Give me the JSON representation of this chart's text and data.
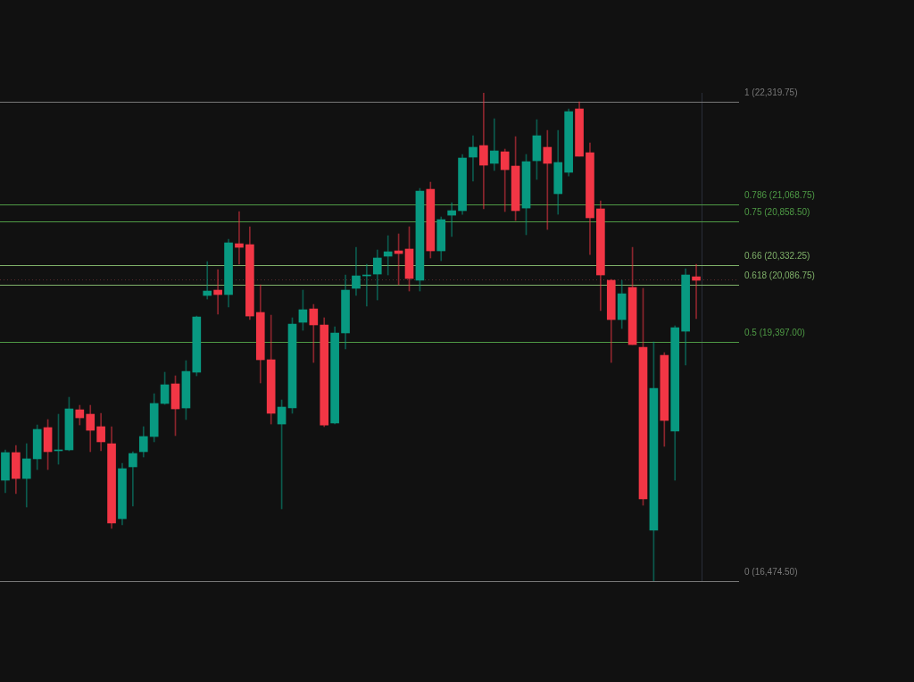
{
  "chart_data": {
    "type": "candlestick",
    "categories": [
      null,
      null,
      null,
      null,
      null,
      null,
      null,
      null,
      null,
      null,
      null,
      null,
      null,
      null,
      null,
      null,
      null,
      null,
      null,
      null,
      null,
      null,
      null,
      null,
      null,
      null,
      null,
      null,
      null,
      null,
      null,
      null,
      null,
      null,
      null,
      null,
      null,
      null,
      null,
      null,
      null,
      null,
      null,
      null,
      null,
      null,
      null,
      null,
      null,
      null,
      null,
      null,
      null,
      null,
      null,
      null,
      null,
      null,
      null,
      null,
      null,
      null,
      null,
      null,
      null,
      null
    ],
    "ohlc": [
      [
        17705,
        18075,
        17552,
        18042
      ],
      [
        18042,
        18129,
        17541,
        17726
      ],
      [
        17726,
        18151,
        17378,
        17966
      ],
      [
        17966,
        18379,
        17835,
        18325
      ],
      [
        18347,
        18445,
        17835,
        18053
      ],
      [
        18064,
        18510,
        17900,
        18064
      ],
      [
        18075,
        18717,
        18064,
        18575
      ],
      [
        18564,
        18619,
        18379,
        18466
      ],
      [
        18510,
        18619,
        18053,
        18314
      ],
      [
        18358,
        18521,
        18064,
        18173
      ],
      [
        18151,
        18358,
        17117,
        17182
      ],
      [
        17236,
        17911,
        17160,
        17846
      ],
      [
        17868,
        18053,
        17389,
        18031
      ],
      [
        18053,
        18358,
        17988,
        18238
      ],
      [
        18238,
        18760,
        18173,
        18641
      ],
      [
        18641,
        19022,
        18630,
        18869
      ],
      [
        18880,
        18978,
        18249,
        18575
      ],
      [
        18586,
        19163,
        18445,
        19032
      ],
      [
        19022,
        19707,
        18978,
        19696
      ],
      [
        19958,
        20371,
        19914,
        20012
      ],
      [
        20023,
        20273,
        19729,
        19969
      ],
      [
        19969,
        20643,
        19816,
        20600
      ],
      [
        20589,
        20981,
        20339,
        20545
      ],
      [
        20578,
        20796,
        19664,
        19707
      ],
      [
        19751,
        20088,
        18891,
        19174
      ],
      [
        19174,
        19718,
        18390,
        18521
      ],
      [
        18390,
        18684,
        17356,
        18597
      ],
      [
        18586,
        19686,
        18521,
        19609
      ],
      [
        19631,
        20023,
        19533,
        19784
      ],
      [
        19794,
        19849,
        19141,
        19599
      ],
      [
        19599,
        19686,
        18358,
        18379
      ],
      [
        18401,
        19577,
        18390,
        19501
      ],
      [
        19501,
        20208,
        19305,
        20023
      ],
      [
        20045,
        20545,
        19958,
        20197
      ],
      [
        20197,
        20339,
        19827,
        20208
      ],
      [
        20219,
        20513,
        19903,
        20415
      ],
      [
        20437,
        20687,
        20208,
        20491
      ],
      [
        20502,
        20709,
        20088,
        20469
      ],
      [
        20524,
        20796,
        20012,
        20165
      ],
      [
        20143,
        21264,
        20012,
        21231
      ],
      [
        21253,
        21340,
        20415,
        20502
      ],
      [
        20502,
        20916,
        20382,
        20883
      ],
      [
        20937,
        21090,
        20676,
        20992
      ],
      [
        20992,
        21678,
        20948,
        21634
      ],
      [
        21645,
        21906,
        21351,
        21765
      ],
      [
        21786,
        22429,
        21014,
        21547
      ],
      [
        21569,
        22113,
        21482,
        21721
      ],
      [
        21710,
        21743,
        20981,
        21492
      ],
      [
        21536,
        21895,
        20872,
        20992
      ],
      [
        21024,
        21678,
        20698,
        21590
      ],
      [
        21601,
        22102,
        21373,
        21906
      ],
      [
        21765,
        21971,
        20763,
        21569
      ],
      [
        21199,
        21971,
        20948,
        21580
      ],
      [
        21460,
        22233,
        21416,
        22200
      ],
      [
        22233,
        22319.75,
        21656,
        21656
      ],
      [
        21699,
        21819,
        20458,
        20905
      ],
      [
        21014,
        21112,
        19773,
        20208
      ],
      [
        20143,
        20154,
        19141,
        19664
      ],
      [
        19664,
        20143,
        19555,
        19979
      ],
      [
        20056,
        20545,
        19359,
        19359
      ],
      [
        19326,
        20045,
        17400,
        17476
      ],
      [
        17095,
        19392,
        16474.5,
        18826
      ],
      [
        19228,
        19261,
        18118,
        18434
      ],
      [
        18303,
        19588,
        17705,
        19566
      ],
      [
        19522,
        20284,
        19109,
        20208
      ],
      [
        20186,
        20339,
        19675,
        20143
      ]
    ],
    "colors": [
      "#089981",
      "#f23645",
      "#089981",
      "#089981",
      "#f23645",
      "#089981",
      "#089981",
      "#f23645",
      "#f23645",
      "#f23645",
      "#f23645",
      "#089981",
      "#089981",
      "#089981",
      "#089981",
      "#089981",
      "#f23645",
      "#089981",
      "#089981",
      "#089981",
      "#f23645",
      "#089981",
      "#f23645",
      "#f23645",
      "#f23645",
      "#f23645",
      "#089981",
      "#089981",
      "#089981",
      "#f23645",
      "#f23645",
      "#089981",
      "#089981",
      "#089981",
      "#089981",
      "#089981",
      "#089981",
      "#f23645",
      "#f23645",
      "#089981",
      "#f23645",
      "#089981",
      "#089981",
      "#089981",
      "#089981",
      "#f23645",
      "#089981",
      "#f23645",
      "#f23645",
      "#089981",
      "#089981",
      "#f23645",
      "#089981",
      "#089981",
      "#f23645",
      "#f23645",
      "#f23645",
      "#f23645",
      "#089981",
      "#f23645",
      "#f23645",
      "#089981",
      "#f23645",
      "#089981",
      "#089981",
      "#f23645"
    ],
    "ylim": [
      16474.5,
      22429
    ],
    "ref_lines": [
      {
        "axis": "y",
        "value": 22319.75,
        "label": "1 (22,319.75)",
        "color": "#787878"
      },
      {
        "axis": "y",
        "value": 21068.75,
        "label": "0.786 (21,068.75)",
        "color": "#4e9a45"
      },
      {
        "axis": "y",
        "value": 20858.5,
        "label": "0.75 (20,858.50)",
        "color": "#4e9a45"
      },
      {
        "axis": "y",
        "value": 20332.25,
        "label": "0.66 (20,332.25)",
        "color": "#7fb069"
      },
      {
        "axis": "y",
        "value": 20086.75,
        "label": "0.618 (20,086.75)",
        "color": "#7fb069"
      },
      {
        "axis": "y",
        "value": 19397,
        "label": "0.5 (19,397.00)",
        "color": "#4e9a45"
      },
      {
        "axis": "y",
        "value": 16474.5,
        "label": "0 (16,474.50)",
        "color": "#787878"
      },
      {
        "axis": "y",
        "value": 20154,
        "color": "#5a2a2e",
        "line_style": "dotted"
      }
    ],
    "tick_labels": false,
    "grid": false,
    "legend": false
  }
}
